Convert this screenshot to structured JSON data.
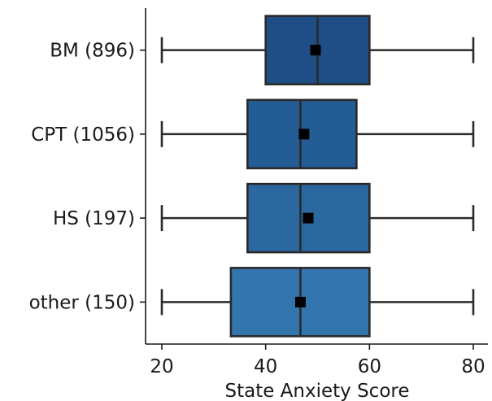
{
  "chart_data": {
    "type": "boxplot",
    "orientation": "horizontal",
    "xlabel": "State Anxiety Score",
    "ylabel": "",
    "xlim": [
      17,
      83
    ],
    "xticks": [
      20,
      40,
      60,
      80
    ],
    "grid": false,
    "mean_marker": "square",
    "categories": [
      "BM (896)",
      "CPT (1056)",
      "HS (197)",
      "other (150)"
    ],
    "boxes": [
      {
        "category": "BM (896)",
        "whisker_low": 20,
        "q1": 40.0,
        "median": 50.0,
        "q3": 60.0,
        "whisker_high": 80,
        "mean": 49.6,
        "color": "#1f4e86"
      },
      {
        "category": "CPT (1056)",
        "whisker_low": 20,
        "q1": 36.5,
        "median": 46.7,
        "q3": 57.5,
        "whisker_high": 80,
        "mean": 47.4,
        "color": "#245c96"
      },
      {
        "category": "HS (197)",
        "whisker_low": 20,
        "q1": 36.5,
        "median": 46.7,
        "q3": 60.0,
        "whisker_high": 80,
        "mean": 48.2,
        "color": "#2a689f"
      },
      {
        "category": "other (150)",
        "whisker_low": 20,
        "q1": 33.3,
        "median": 46.7,
        "q3": 60.0,
        "whisker_high": 80,
        "mean": 46.7,
        "color": "#3375ad"
      }
    ]
  }
}
